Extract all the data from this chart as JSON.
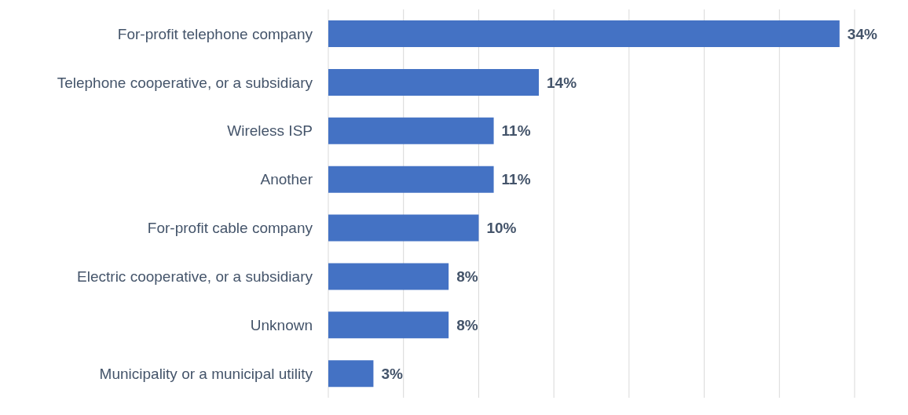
{
  "chart_data": {
    "type": "bar",
    "orientation": "horizontal",
    "categories": [
      "For-profit telephone company",
      "Telephone cooperative, or a subsidiary",
      "Wireless ISP",
      "Another",
      "For-profit cable company",
      "Electric cooperative, or a subsidiary",
      "Unknown",
      "Municipality or a municipal utility"
    ],
    "values": [
      34,
      14,
      11,
      11,
      10,
      8,
      8,
      3
    ],
    "value_labels": [
      "34%",
      "14%",
      "11%",
      "11%",
      "10%",
      "8%",
      "8%",
      "3%"
    ],
    "color": "#4472c4",
    "xlim": [
      0,
      35
    ],
    "xticks": [
      {
        "value": 0,
        "label": null
      },
      {
        "value": 5,
        "label": null
      },
      {
        "value": 10,
        "label": null
      },
      {
        "value": 15,
        "label": null
      },
      {
        "value": 20,
        "label": null
      },
      {
        "value": 25,
        "label": null
      },
      {
        "value": 30,
        "label": null
      },
      {
        "value": 35,
        "label": null
      }
    ],
    "grid": "x",
    "tick_labels": "y"
  }
}
